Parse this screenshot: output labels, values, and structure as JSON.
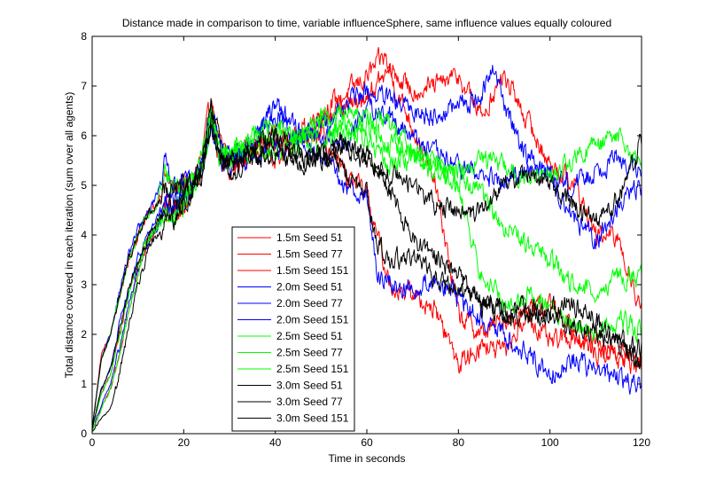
{
  "chart_data": {
    "type": "line",
    "title": "Distance made in comparison to time, variable influenceSphere, same influence values equally coloured",
    "xlabel": "Time in seconds",
    "ylabel": "Total distance covered in each iteration (sum over all agents)",
    "xlim": [
      0,
      120
    ],
    "ylim": [
      0,
      8
    ],
    "xticks": [
      0,
      20,
      40,
      60,
      80,
      100,
      120
    ],
    "yticks": [
      0,
      1,
      2,
      3,
      4,
      5,
      6,
      7,
      8
    ],
    "grid": false,
    "legend_position": "lower-center",
    "series": [
      {
        "name": "1.5m Seed 51",
        "color": "#ff0000",
        "x": [
          0,
          2,
          4,
          6,
          8,
          10,
          12,
          14,
          16,
          18,
          20,
          22,
          24,
          26,
          28,
          30,
          35,
          40,
          45,
          50,
          55,
          60,
          62,
          64,
          66,
          70,
          75,
          80,
          85,
          90,
          95,
          100,
          105,
          110,
          115,
          120
        ],
        "y": [
          0.1,
          1.6,
          2.0,
          2.8,
          3.5,
          4.0,
          4.4,
          4.6,
          5.2,
          4.9,
          5.0,
          5.1,
          5.6,
          6.7,
          5.8,
          5.5,
          5.9,
          5.8,
          6.0,
          6.5,
          6.8,
          7.2,
          7.4,
          7.6,
          7.0,
          6.2,
          5.0,
          2.4,
          2.0,
          2.3,
          2.4,
          1.8,
          2.0,
          1.6,
          1.7,
          1.4
        ]
      },
      {
        "name": "1.5m Seed 77",
        "color": "#ff0000",
        "x": [
          0,
          2,
          4,
          6,
          8,
          10,
          12,
          14,
          16,
          18,
          20,
          22,
          24,
          26,
          28,
          30,
          35,
          40,
          45,
          50,
          55,
          60,
          65,
          70,
          75,
          80,
          85,
          90,
          95,
          100,
          105,
          110,
          115,
          120
        ],
        "y": [
          0.1,
          0.8,
          1.2,
          2.0,
          2.8,
          3.4,
          3.9,
          4.2,
          4.6,
          4.5,
          4.7,
          5.0,
          5.4,
          6.4,
          5.6,
          5.5,
          5.6,
          6.0,
          5.8,
          6.3,
          6.5,
          6.8,
          7.3,
          6.9,
          7.0,
          7.2,
          6.4,
          7.2,
          6.3,
          5.4,
          5.1,
          4.0,
          3.9,
          2.5
        ]
      },
      {
        "name": "1.5m Seed 151",
        "color": "#ff0000",
        "x": [
          0,
          2,
          4,
          6,
          8,
          10,
          12,
          14,
          16,
          18,
          20,
          22,
          24,
          26,
          28,
          30,
          35,
          40,
          45,
          50,
          55,
          60,
          65,
          70,
          75,
          80,
          85,
          90,
          95,
          100,
          105,
          110,
          115,
          120
        ],
        "y": [
          0.05,
          0.5,
          0.9,
          1.6,
          2.5,
          3.2,
          3.8,
          4.1,
          4.4,
          4.5,
          4.6,
          5.0,
          5.3,
          6.5,
          5.5,
          5.3,
          5.7,
          5.5,
          5.9,
          6.0,
          5.2,
          4.8,
          3.0,
          2.8,
          2.5,
          1.4,
          1.8,
          1.6,
          2.4,
          2.6,
          2.2,
          1.8,
          1.5,
          1.3
        ]
      },
      {
        "name": "2.0m Seed 51",
        "color": "#0000ff",
        "x": [
          0,
          2,
          4,
          6,
          8,
          10,
          12,
          14,
          16,
          18,
          20,
          22,
          24,
          26,
          28,
          30,
          35,
          40,
          45,
          50,
          55,
          60,
          65,
          70,
          75,
          80,
          85,
          88,
          90,
          95,
          100,
          105,
          110,
          115,
          120
        ],
        "y": [
          0.1,
          1.5,
          2.0,
          2.9,
          3.6,
          4.1,
          4.4,
          4.8,
          5.5,
          5.0,
          5.1,
          5.0,
          5.5,
          6.6,
          5.7,
          5.6,
          5.8,
          6.5,
          5.9,
          6.2,
          6.6,
          6.9,
          6.7,
          6.5,
          6.4,
          6.6,
          6.8,
          7.4,
          6.6,
          5.6,
          5.2,
          4.4,
          3.8,
          4.6,
          5.0
        ]
      },
      {
        "name": "2.0m Seed 77",
        "color": "#0000ff",
        "x": [
          0,
          2,
          4,
          6,
          8,
          10,
          12,
          14,
          16,
          18,
          20,
          22,
          24,
          26,
          28,
          30,
          35,
          40,
          45,
          50,
          55,
          60,
          65,
          70,
          75,
          80,
          85,
          90,
          95,
          100,
          105,
          110,
          115,
          120
        ],
        "y": [
          0.1,
          0.9,
          1.3,
          2.2,
          2.9,
          3.5,
          4.0,
          4.3,
          4.7,
          4.6,
          4.8,
          5.0,
          5.3,
          6.3,
          5.6,
          5.6,
          5.8,
          6.7,
          6.1,
          6.0,
          5.8,
          6.6,
          6.4,
          6.0,
          5.6,
          5.4,
          5.2,
          5.0,
          5.4,
          5.2,
          5.0,
          5.3,
          5.6,
          5.2
        ]
      },
      {
        "name": "2.0m Seed 151",
        "color": "#0000ff",
        "x": [
          0,
          2,
          4,
          6,
          8,
          10,
          12,
          14,
          16,
          18,
          20,
          22,
          24,
          26,
          28,
          30,
          35,
          40,
          45,
          50,
          55,
          60,
          62,
          65,
          70,
          75,
          80,
          85,
          90,
          95,
          100,
          105,
          110,
          115,
          120
        ],
        "y": [
          0.05,
          0.6,
          1.0,
          1.7,
          2.6,
          3.3,
          3.8,
          4.1,
          4.5,
          4.5,
          4.7,
          5.0,
          5.4,
          6.2,
          5.5,
          5.3,
          5.6,
          5.7,
          5.9,
          5.6,
          5.0,
          4.8,
          3.3,
          3.0,
          2.9,
          3.1,
          2.7,
          2.3,
          2.0,
          1.6,
          1.2,
          1.5,
          1.3,
          1.1,
          1.0
        ]
      },
      {
        "name": "2.5m Seed 51",
        "color": "#00ff00",
        "x": [
          0,
          2,
          4,
          6,
          8,
          10,
          12,
          14,
          16,
          18,
          20,
          22,
          24,
          26,
          28,
          30,
          35,
          40,
          45,
          50,
          55,
          60,
          65,
          70,
          75,
          80,
          85,
          90,
          95,
          100,
          105,
          110,
          115,
          120
        ],
        "y": [
          0.1,
          1.5,
          2.0,
          2.8,
          3.5,
          4.0,
          4.4,
          4.6,
          5.4,
          4.9,
          5.0,
          5.1,
          5.6,
          6.5,
          5.8,
          5.6,
          6.0,
          6.2,
          5.9,
          6.4,
          6.0,
          6.2,
          5.8,
          5.6,
          5.4,
          5.3,
          5.6,
          5.4,
          5.1,
          5.2,
          5.5,
          5.8,
          6.0,
          5.3
        ]
      },
      {
        "name": "2.5m Seed 77",
        "color": "#00ff00",
        "x": [
          0,
          2,
          4,
          6,
          8,
          10,
          12,
          14,
          16,
          18,
          20,
          22,
          24,
          26,
          28,
          30,
          35,
          40,
          45,
          50,
          55,
          60,
          65,
          70,
          75,
          80,
          85,
          90,
          95,
          100,
          105,
          110,
          115,
          120
        ],
        "y": [
          0.1,
          0.8,
          1.2,
          2.0,
          2.8,
          3.4,
          3.9,
          4.2,
          4.6,
          4.2,
          4.6,
          4.9,
          5.3,
          6.4,
          5.6,
          5.8,
          5.9,
          6.1,
          5.8,
          6.3,
          6.5,
          6.4,
          6.2,
          5.8,
          5.5,
          5.2,
          4.8,
          4.2,
          3.8,
          3.5,
          3.0,
          2.9,
          3.2,
          3.1
        ]
      },
      {
        "name": "2.5m Seed 151",
        "color": "#00ff00",
        "x": [
          0,
          2,
          4,
          6,
          8,
          10,
          12,
          14,
          16,
          18,
          20,
          22,
          24,
          26,
          28,
          30,
          35,
          40,
          45,
          50,
          55,
          60,
          65,
          70,
          75,
          80,
          85,
          90,
          95,
          100,
          105,
          110,
          115,
          120
        ],
        "y": [
          0.05,
          0.5,
          0.9,
          1.6,
          2.5,
          3.2,
          3.8,
          4.1,
          4.4,
          4.4,
          4.6,
          5.0,
          5.3,
          6.4,
          5.6,
          5.5,
          5.7,
          5.6,
          5.9,
          5.8,
          6.3,
          5.9,
          5.4,
          5.6,
          5.2,
          5.0,
          3.2,
          2.6,
          2.8,
          2.5,
          2.2,
          2.0,
          2.3,
          2.1
        ]
      },
      {
        "name": "3.0m Seed 51",
        "color": "#000000",
        "x": [
          0,
          2,
          4,
          6,
          8,
          10,
          12,
          14,
          16,
          18,
          20,
          22,
          24,
          26,
          28,
          30,
          35,
          40,
          45,
          50,
          55,
          60,
          65,
          70,
          75,
          80,
          85,
          90,
          95,
          100,
          105,
          110,
          115,
          120
        ],
        "y": [
          0.1,
          1.5,
          2.0,
          2.8,
          3.5,
          4.0,
          4.4,
          4.6,
          5.0,
          4.8,
          5.0,
          5.0,
          5.4,
          6.6,
          5.8,
          5.3,
          5.7,
          6.0,
          5.6,
          5.6,
          5.9,
          5.4,
          5.2,
          5.0,
          4.6,
          4.5,
          4.4,
          5.0,
          5.2,
          5.1,
          4.6,
          4.3,
          4.7,
          5.9
        ]
      },
      {
        "name": "3.0m Seed 77",
        "color": "#000000",
        "x": [
          0,
          2,
          4,
          6,
          8,
          10,
          12,
          14,
          16,
          18,
          20,
          22,
          24,
          26,
          28,
          30,
          35,
          40,
          45,
          50,
          55,
          60,
          65,
          70,
          75,
          80,
          85,
          90,
          95,
          100,
          105,
          110,
          115,
          120
        ],
        "y": [
          0.1,
          0.9,
          1.3,
          2.1,
          2.9,
          3.4,
          3.9,
          4.2,
          4.6,
          4.6,
          4.8,
          5.0,
          5.3,
          6.3,
          5.6,
          5.4,
          5.6,
          5.9,
          5.4,
          5.5,
          5.8,
          5.6,
          4.9,
          3.9,
          3.5,
          3.2,
          2.6,
          2.5,
          2.6,
          2.3,
          2.2,
          2.0,
          1.9,
          1.7
        ]
      },
      {
        "name": "3.0m Seed 151",
        "color": "#000000",
        "x": [
          0,
          2,
          4,
          6,
          8,
          10,
          12,
          14,
          16,
          18,
          20,
          22,
          24,
          26,
          28,
          30,
          35,
          40,
          45,
          50,
          55,
          60,
          62,
          65,
          70,
          75,
          80,
          85,
          90,
          95,
          100,
          105,
          110,
          115,
          120
        ],
        "y": [
          0.05,
          0.3,
          0.5,
          1.2,
          2.2,
          3.0,
          3.6,
          4.0,
          4.3,
          4.3,
          4.6,
          4.9,
          5.2,
          6.3,
          5.4,
          5.2,
          5.6,
          5.6,
          5.5,
          5.6,
          5.3,
          4.9,
          3.8,
          3.5,
          3.6,
          3.1,
          2.9,
          2.7,
          2.4,
          2.3,
          2.5,
          2.6,
          2.3,
          1.9,
          1.4
        ]
      }
    ]
  }
}
